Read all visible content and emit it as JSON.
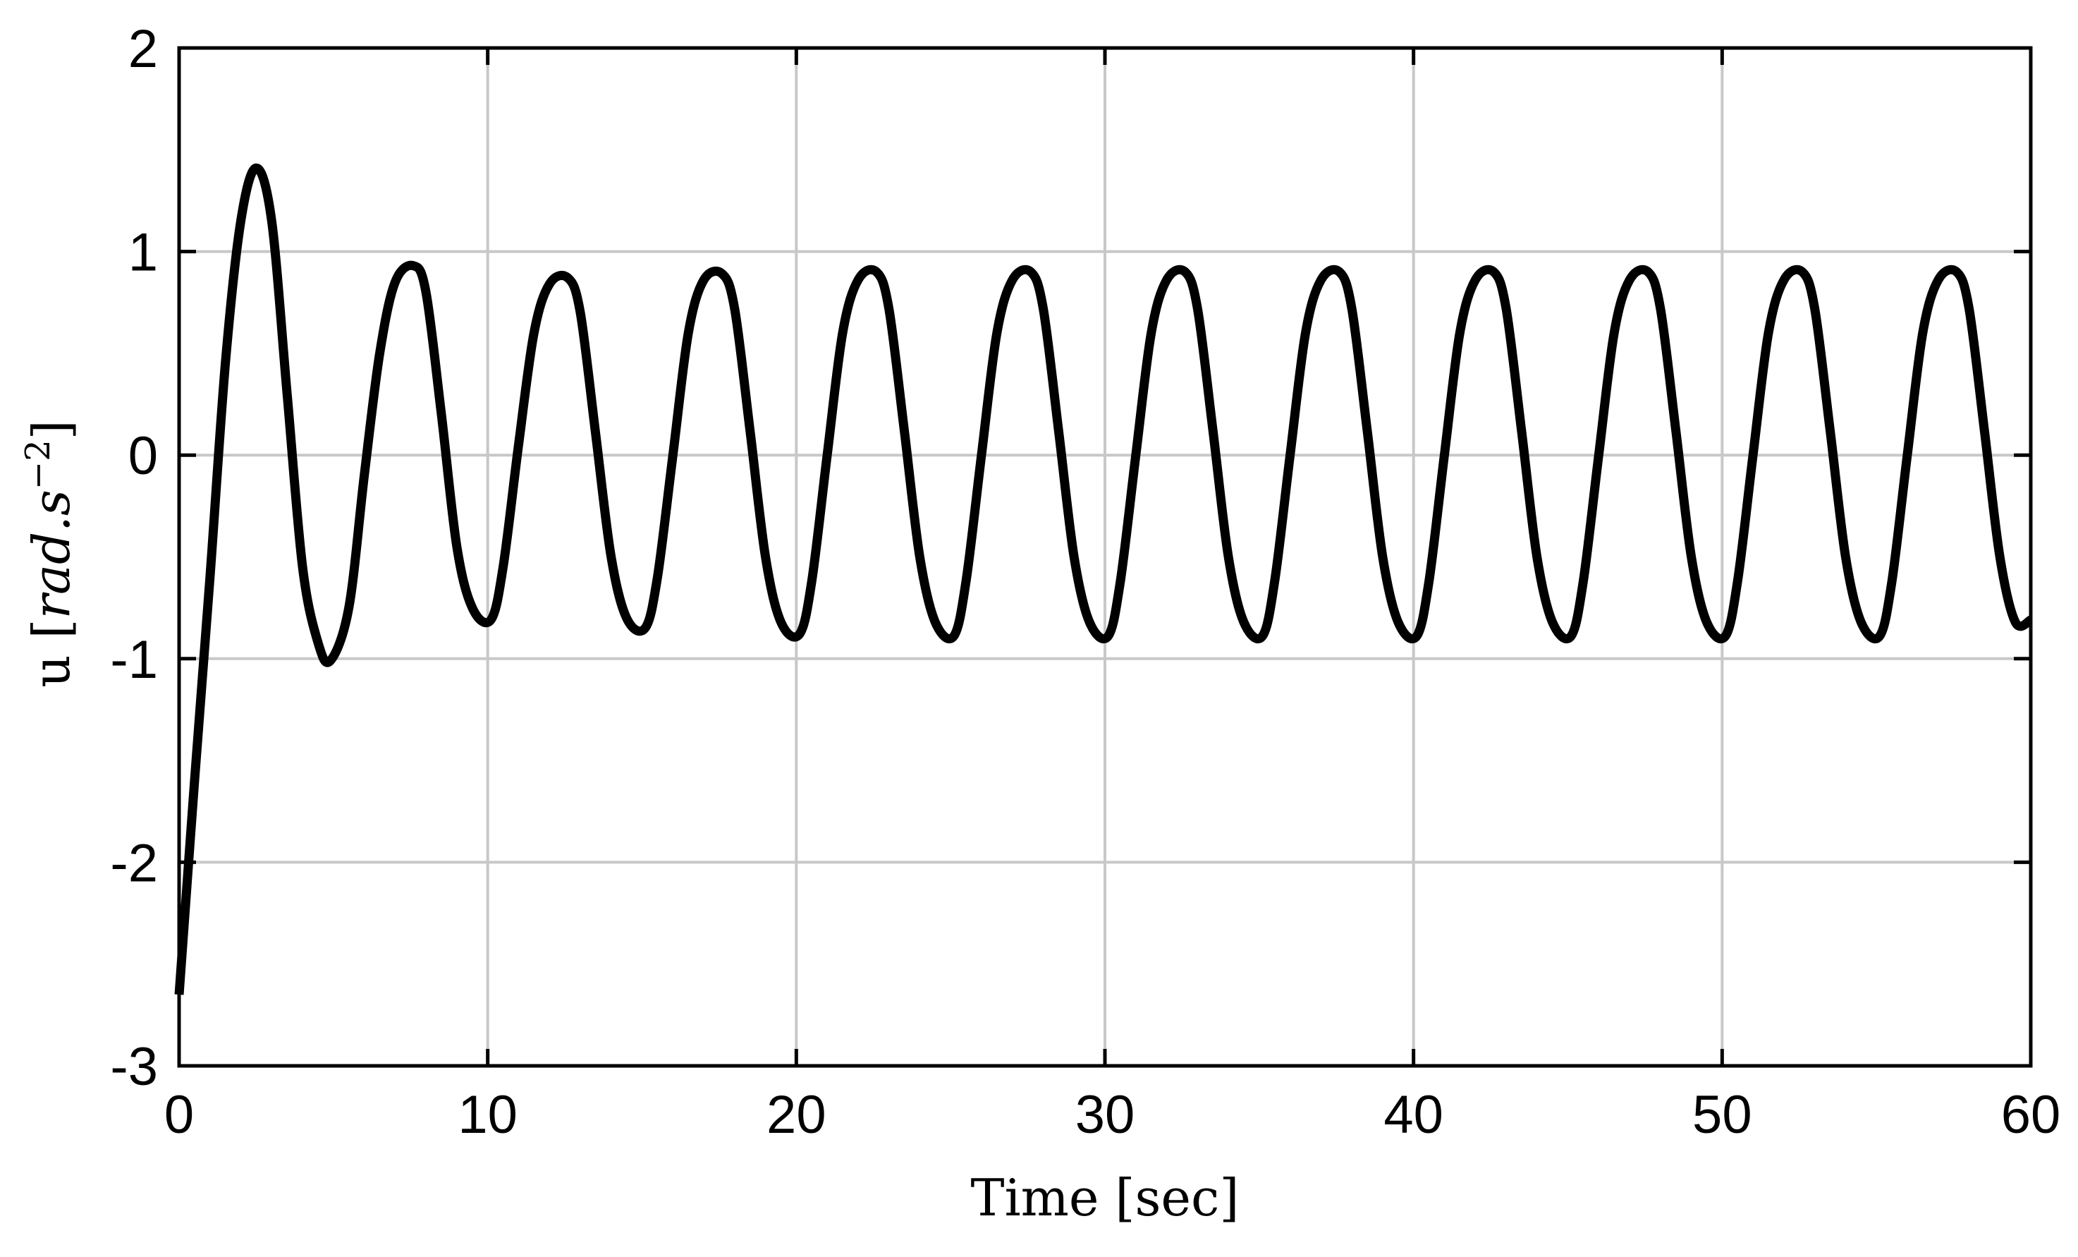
{
  "chart_data": {
    "type": "line",
    "title": "",
    "xlabel": "Time [sec]",
    "ylabel": {
      "prefix": "u ",
      "open": "[",
      "unit_italic": "rad.s",
      "exponent": "−2",
      "close": "]"
    },
    "xlim": [
      0,
      60
    ],
    "ylim": [
      -3,
      2
    ],
    "xticks": [
      0,
      10,
      20,
      30,
      40,
      50,
      60
    ],
    "xtick_labels": [
      "0",
      "10",
      "20",
      "30",
      "40",
      "50",
      "60"
    ],
    "yticks": [
      -3,
      -2,
      -1,
      0,
      1,
      2
    ],
    "ytick_labels": [
      "-3",
      "-2",
      "-1",
      "0",
      "1",
      "2"
    ],
    "grid": true,
    "legend": "none",
    "line_color": "#000000",
    "grid_color": "#c8c8c8",
    "series": [
      {
        "x": [
          0,
          0.5,
          1.0,
          1.5,
          2.0,
          2.5,
          3.0,
          3.5,
          4.0,
          4.5,
          4.9,
          5.5,
          6.0,
          6.5,
          7.0,
          7.6,
          8.0,
          8.5,
          9.0,
          9.5,
          10.1,
          10.5,
          11.0,
          11.5,
          12.0,
          12.6,
          13.0,
          13.5,
          14.0,
          14.5,
          15.1,
          15.5,
          16.0,
          16.5,
          17.0,
          17.6,
          18.0,
          18.5,
          19.0,
          19.5,
          20.1,
          20.5,
          21.0,
          21.5,
          22.0,
          22.6,
          23.0,
          23.5,
          24.0,
          24.5,
          25.1,
          25.5,
          26.0,
          26.5,
          27.0,
          27.6,
          28.0,
          28.5,
          29.0,
          29.5,
          30.1,
          30.5,
          31.0,
          31.5,
          32.0,
          32.6,
          33.0,
          33.5,
          34.0,
          34.5,
          35.1,
          35.5,
          36.0,
          36.5,
          37.0,
          37.6,
          38.0,
          38.5,
          39.0,
          39.5,
          40.1,
          40.5,
          41.0,
          41.5,
          42.0,
          42.6,
          43.0,
          43.5,
          44.0,
          44.5,
          45.1,
          45.5,
          46.0,
          46.5,
          47.0,
          47.6,
          48.0,
          48.5,
          49.0,
          49.5,
          50.1,
          50.5,
          51.0,
          51.5,
          52.0,
          52.6,
          53.0,
          53.5,
          54.0,
          54.5,
          55.1,
          55.5,
          56.0,
          56.5,
          57.0,
          57.6,
          58.0,
          58.5,
          59.0,
          59.5,
          60.0
        ],
        "y": [
          -2.65,
          -1.6,
          -0.6,
          0.45,
          1.15,
          1.41,
          1.15,
          0.3,
          -0.55,
          -0.92,
          -1.01,
          -0.75,
          -0.1,
          0.5,
          0.85,
          0.93,
          0.8,
          0.2,
          -0.45,
          -0.75,
          -0.81,
          -0.55,
          0.05,
          0.6,
          0.84,
          0.87,
          0.7,
          0.1,
          -0.5,
          -0.8,
          -0.85,
          -0.6,
          0.0,
          0.6,
          0.86,
          0.89,
          0.72,
          0.12,
          -0.5,
          -0.82,
          -0.88,
          -0.62,
          0.0,
          0.6,
          0.86,
          0.9,
          0.72,
          0.12,
          -0.5,
          -0.82,
          -0.89,
          -0.62,
          0.0,
          0.6,
          0.86,
          0.9,
          0.72,
          0.12,
          -0.5,
          -0.82,
          -0.89,
          -0.62,
          0.0,
          0.6,
          0.86,
          0.9,
          0.72,
          0.12,
          -0.5,
          -0.82,
          -0.89,
          -0.62,
          0.0,
          0.6,
          0.86,
          0.9,
          0.72,
          0.12,
          -0.5,
          -0.82,
          -0.89,
          -0.62,
          0.0,
          0.6,
          0.86,
          0.9,
          0.72,
          0.12,
          -0.5,
          -0.82,
          -0.89,
          -0.62,
          0.0,
          0.6,
          0.86,
          0.9,
          0.72,
          0.12,
          -0.5,
          -0.82,
          -0.89,
          -0.62,
          0.0,
          0.6,
          0.86,
          0.9,
          0.72,
          0.12,
          -0.5,
          -0.82,
          -0.89,
          -0.62,
          0.0,
          0.6,
          0.86,
          0.9,
          0.72,
          0.12,
          -0.5,
          -0.82,
          -0.81
        ]
      }
    ]
  }
}
